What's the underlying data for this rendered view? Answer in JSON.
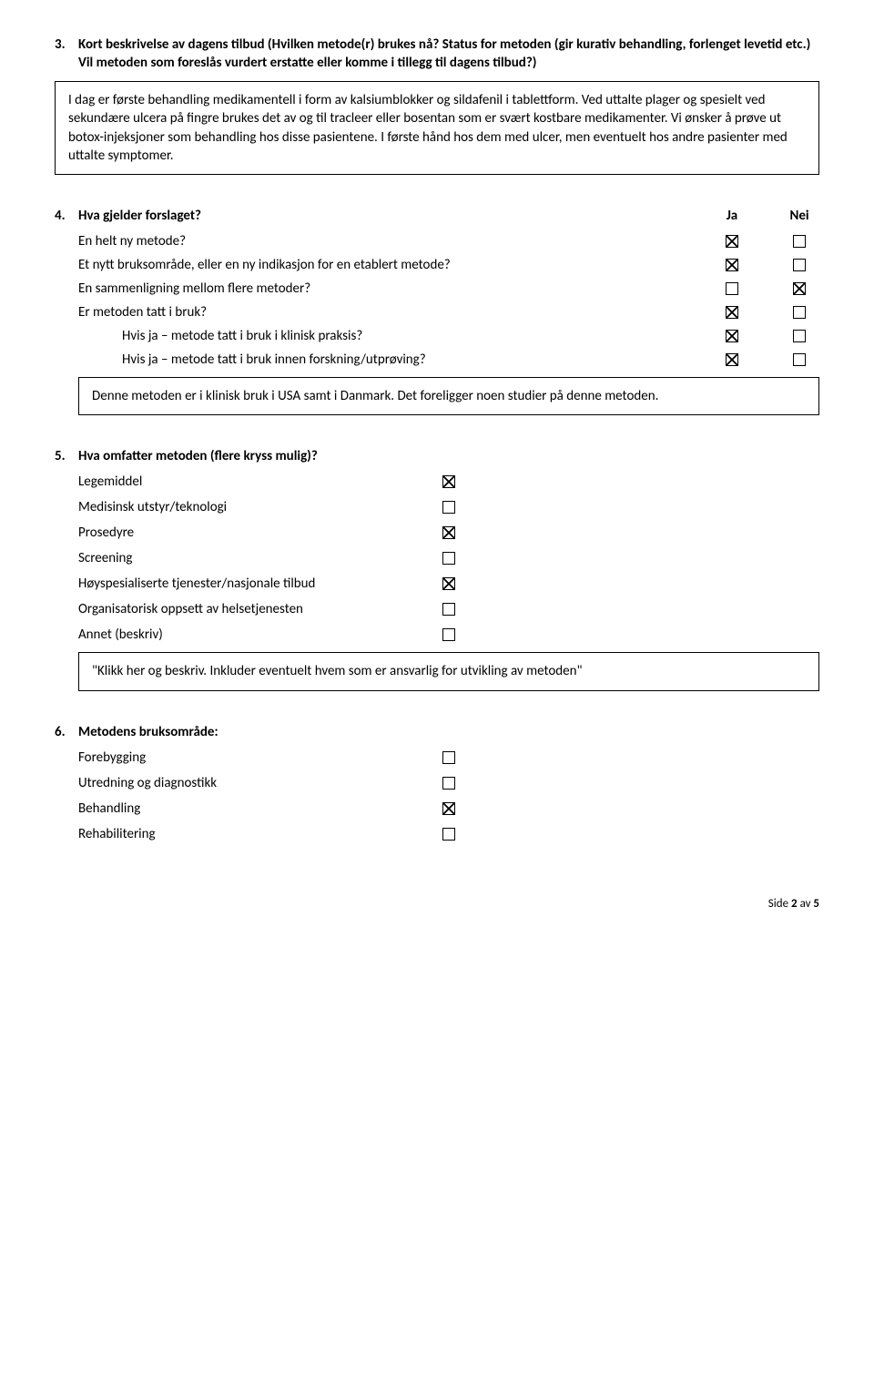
{
  "q3": {
    "num": "3.",
    "title": "Kort beskrivelse av dagens tilbud (Hvilken metode(r) brukes nå? Status for metoden (gir kurativ behandling, forlenget levetid etc.) Vil metoden som foreslås vurdert erstatte eller komme i tillegg til dagens tilbud?)",
    "box": "I dag er første behandling medikamentell i form av kalsiumblokker og sildafenil i tablettform. Ved uttalte plager og spesielt ved sekundære ulcera på fingre brukes det av og til tracleer eller bosentan som er svært kostbare medikamenter. Vi ønsker å prøve ut botox-injeksjoner som behandling hos disse pasientene. I første hånd hos dem med ulcer, men eventuelt hos andre pasienter med uttalte symptomer."
  },
  "q4": {
    "num": "4.",
    "title": "Hva gjelder forslaget?",
    "col_ja": "Ja",
    "col_nei": "Nei",
    "rows": [
      {
        "label": "En helt ny metode?",
        "ja": true,
        "nei": false,
        "indent": false
      },
      {
        "label": "Et nytt bruksområde, eller en ny indikasjon for en etablert metode?",
        "ja": true,
        "nei": false,
        "indent": false
      },
      {
        "label": "En sammenligning mellom flere metoder?",
        "ja": false,
        "nei": true,
        "indent": false
      },
      {
        "label": "Er metoden tatt i bruk?",
        "ja": true,
        "nei": false,
        "indent": false
      },
      {
        "label": "Hvis ja – metode tatt i bruk i klinisk praksis?",
        "ja": true,
        "nei": false,
        "indent": true
      },
      {
        "label": "Hvis ja – metode tatt i bruk innen forskning/utprøving?",
        "ja": true,
        "nei": false,
        "indent": true
      }
    ],
    "box": "Denne metoden er i klinisk bruk i USA samt i Danmark. Det foreligger noen studier på denne metoden."
  },
  "q5": {
    "num": "5.",
    "title": "Hva omfatter metoden (flere kryss mulig)?",
    "rows": [
      {
        "label": "Legemiddel",
        "checked": true
      },
      {
        "label": "Medisinsk utstyr/teknologi",
        "checked": false
      },
      {
        "label": "Prosedyre",
        "checked": true
      },
      {
        "label": "Screening",
        "checked": false
      },
      {
        "label": "Høyspesialiserte tjenester/nasjonale tilbud",
        "checked": true
      },
      {
        "label": "Organisatorisk oppsett av helsetjenesten",
        "checked": false
      },
      {
        "label": "Annet (beskriv)",
        "checked": false
      }
    ],
    "box": "\"Klikk her og beskriv. Inkluder eventuelt hvem som er ansvarlig for utvikling av metoden\""
  },
  "q6": {
    "num": "6.",
    "title": "Metodens bruksområde:",
    "rows": [
      {
        "label": "Forebygging",
        "checked": false
      },
      {
        "label": "Utredning og diagnostikk",
        "checked": false
      },
      {
        "label": "Behandling",
        "checked": true
      },
      {
        "label": "Rehabilitering",
        "checked": false
      }
    ]
  },
  "footer": {
    "page_label": "Side",
    "page_current": "2",
    "page_sep": "av",
    "page_total": "5"
  }
}
